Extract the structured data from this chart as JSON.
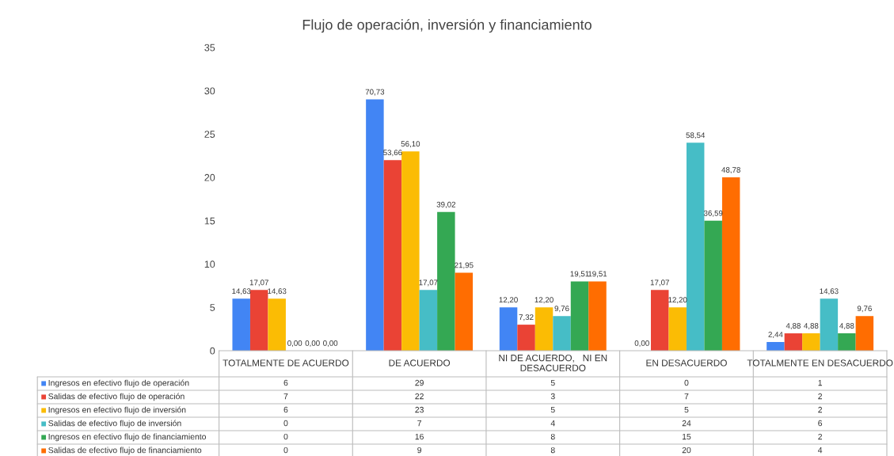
{
  "chart_data": {
    "type": "bar",
    "title": "Flujo de operación, inversión y financiamiento",
    "categories": [
      "TOTALMENTE DE ACUERDO",
      "DE ACUERDO",
      "NI DE ACUERDO,   NI EN DESACUERDO",
      "EN DESACUERDO",
      "TOTALMENTE EN DESACUERDO"
    ],
    "series": [
      {
        "name": "Ingresos en efectivo flujo de operación",
        "color": "#4285f4",
        "values": [
          6,
          29,
          5,
          0,
          1
        ]
      },
      {
        "name": "Salidas de efectivo flujo de operación",
        "color": "#ea4335",
        "values": [
          7,
          22,
          3,
          7,
          2
        ]
      },
      {
        "name": "Ingresos en efectivo flujo de inversión",
        "color": "#fbbc04",
        "values": [
          6,
          23,
          5,
          5,
          2
        ]
      },
      {
        "name": "Salidas de efectivo flujo de inversión",
        "color": "#46bdc6",
        "values": [
          0,
          7,
          4,
          24,
          6
        ]
      },
      {
        "name": "Ingresos en efectivo flujo de financiamiento",
        "color": "#34a853",
        "values": [
          0,
          16,
          8,
          15,
          2
        ]
      },
      {
        "name": "Salidas de efectivo flujo de financiamiento",
        "color": "#ff6d01",
        "values": [
          0,
          9,
          8,
          20,
          4
        ]
      }
    ],
    "annotations": [
      "14,63",
      "70,73",
      "12,20",
      "0,00",
      "2,44",
      "17,07",
      "53,66",
      "7,32",
      "17,07",
      "4,88",
      "14,63",
      "56,10",
      "12,20",
      "12,20",
      "4,88",
      "0,00",
      "17,07",
      "9,76",
      "58,54",
      "14,63",
      "0,00",
      "39,02",
      "19,51",
      "36,59",
      "4,88",
      "0,00",
      "21,95",
      "19,51",
      "48,78",
      "9,76"
    ],
    "ylim": [
      0,
      35
    ],
    "yticks": [
      0,
      5,
      10,
      15,
      20,
      25,
      30,
      35
    ],
    "grid": false,
    "legend": "bottom",
    "data_labels": true
  }
}
